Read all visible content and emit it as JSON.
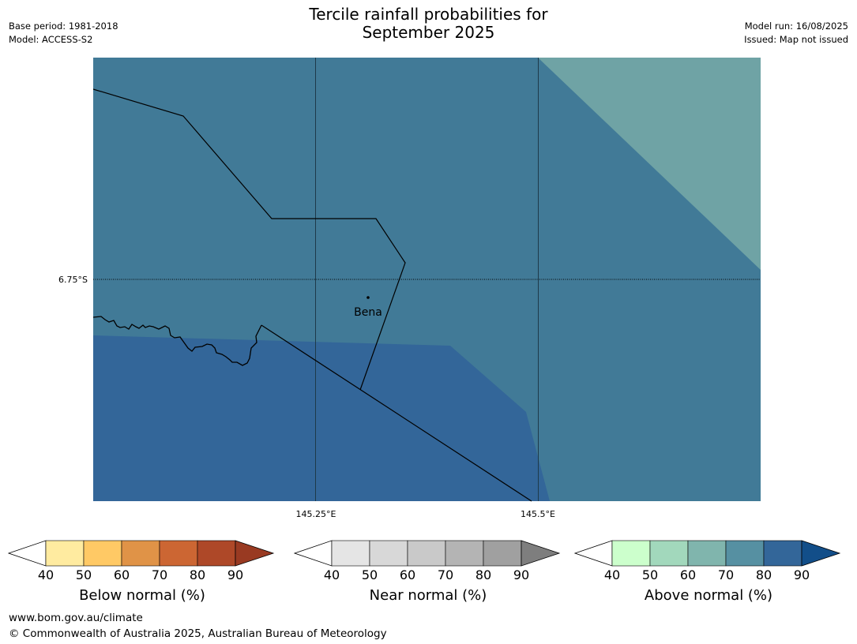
{
  "title_line1": "Tercile rainfall probabilities for",
  "title_line2": "September 2025",
  "meta_left": {
    "base_period": "Base period: 1981-2018",
    "model": "Model: ACCESS-S2"
  },
  "meta_right": {
    "model_run": "Model run: 16/08/2025",
    "issued": "Issued: Map not issued"
  },
  "map": {
    "lat_label": "6.75°S",
    "lon_labels": [
      "145.25°E",
      "145.5°E"
    ],
    "place": "Bena",
    "colors": {
      "above_70_80": "#417a97",
      "above_80_90": "#336699",
      "above_60_70": "#6fa3a5",
      "border": "#000000"
    }
  },
  "legends": [
    {
      "title": "Below normal (%)",
      "ticks": [
        "40",
        "50",
        "60",
        "70",
        "80",
        "90"
      ],
      "colors": [
        "#ffffff",
        "#ffeba0",
        "#ffc965",
        "#e09347",
        "#cc6633",
        "#ae4828",
        "#993a22"
      ]
    },
    {
      "title": "Near normal (%)",
      "ticks": [
        "40",
        "50",
        "60",
        "70",
        "80",
        "90"
      ],
      "colors": [
        "#ffffff",
        "#e5e5e5",
        "#d8d8d8",
        "#c9c9c9",
        "#b4b4b4",
        "#a0a0a0",
        "#7e7e7e"
      ]
    },
    {
      "title": "Above normal (%)",
      "ticks": [
        "40",
        "50",
        "60",
        "70",
        "80",
        "90"
      ],
      "colors": [
        "#ffffff",
        "#ccffcc",
        "#a2d8bc",
        "#80b5ad",
        "#5690a2",
        "#336699",
        "#124e89"
      ]
    }
  ],
  "footer": {
    "url": "www.bom.gov.au/climate",
    "copyright": "© Commonwealth of Australia 2025, Australian Bureau of Meteorology"
  }
}
